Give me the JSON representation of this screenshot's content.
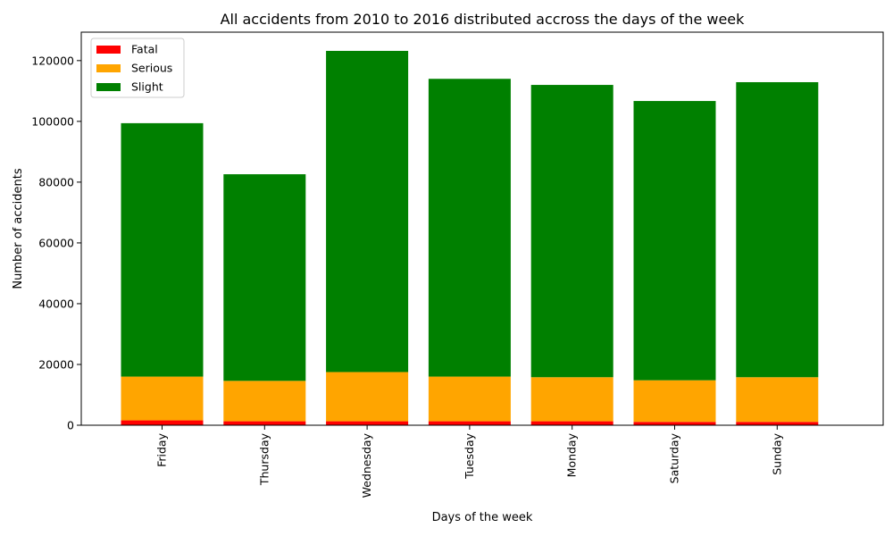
{
  "chart_data": {
    "type": "bar",
    "stacked": true,
    "title": "All accidents from 2010 to 2016 distributed accross the days of the week",
    "xlabel": "Days of the week",
    "ylabel": "Number of accidents",
    "categories": [
      "Friday",
      "Thursday",
      "Wednesday",
      "Tuesday",
      "Monday",
      "Saturday",
      "Sunday"
    ],
    "series": [
      {
        "name": "Fatal",
        "color": "#ff0000",
        "values": [
          1600,
          1300,
          1300,
          1300,
          1300,
          1100,
          1100
        ]
      },
      {
        "name": "Serious",
        "color": "#ffa500",
        "values": [
          14400,
          13300,
          16200,
          14700,
          14500,
          13700,
          14700
        ]
      },
      {
        "name": "Slight",
        "color": "#008000",
        "values": [
          83400,
          68000,
          105700,
          98000,
          96200,
          91900,
          97100
        ]
      }
    ],
    "totals": [
      99400,
      82600,
      123200,
      114000,
      112000,
      106700,
      112900
    ],
    "ylim": [
      0,
      129360
    ],
    "yticks": [
      0,
      20000,
      40000,
      60000,
      80000,
      100000,
      120000
    ],
    "grid": false,
    "legend_position": "top-left"
  }
}
